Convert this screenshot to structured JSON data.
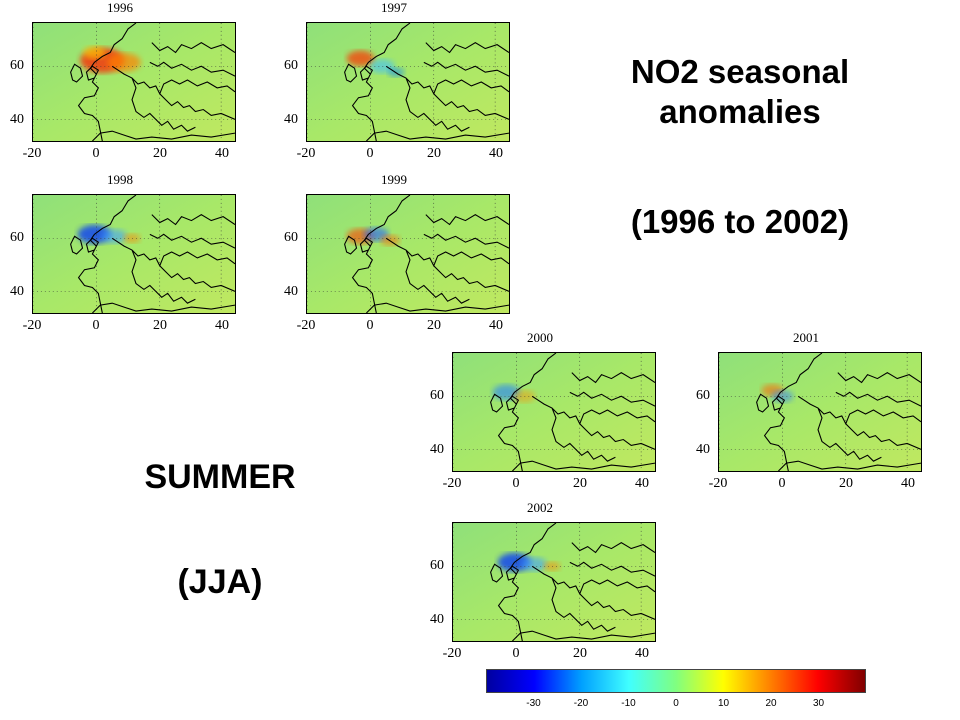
{
  "title": {
    "line1": "NO2 seasonal",
    "line2": "anomalies",
    "line3": "(1996 to 2002)"
  },
  "season": {
    "line1": "SUMMER",
    "line2": "(JJA)"
  },
  "panels": [
    {
      "year": "1996",
      "hotspot": "positive-strong"
    },
    {
      "year": "1997",
      "hotspot": "positive-mixed"
    },
    {
      "year": "1998",
      "hotspot": "negative"
    },
    {
      "year": "1999",
      "hotspot": "mixed"
    },
    {
      "year": "2000",
      "hotspot": "negative-weak"
    },
    {
      "year": "2001",
      "hotspot": "mixed-weak"
    },
    {
      "year": "2002",
      "hotspot": "negative"
    }
  ],
  "axes": {
    "y_ticks": [
      "60",
      "40"
    ],
    "x_ticks": [
      "-20",
      "0",
      "20",
      "40"
    ]
  },
  "colorbar": {
    "ticks": [
      "-30",
      "-20",
      "-10",
      "0",
      "10",
      "20",
      "30"
    ],
    "colormap": [
      "#0000a0",
      "#0000ff",
      "#00a0ff",
      "#40ffff",
      "#80ff80",
      "#ffff00",
      "#ff8000",
      "#ff0000",
      "#800000"
    ]
  }
}
